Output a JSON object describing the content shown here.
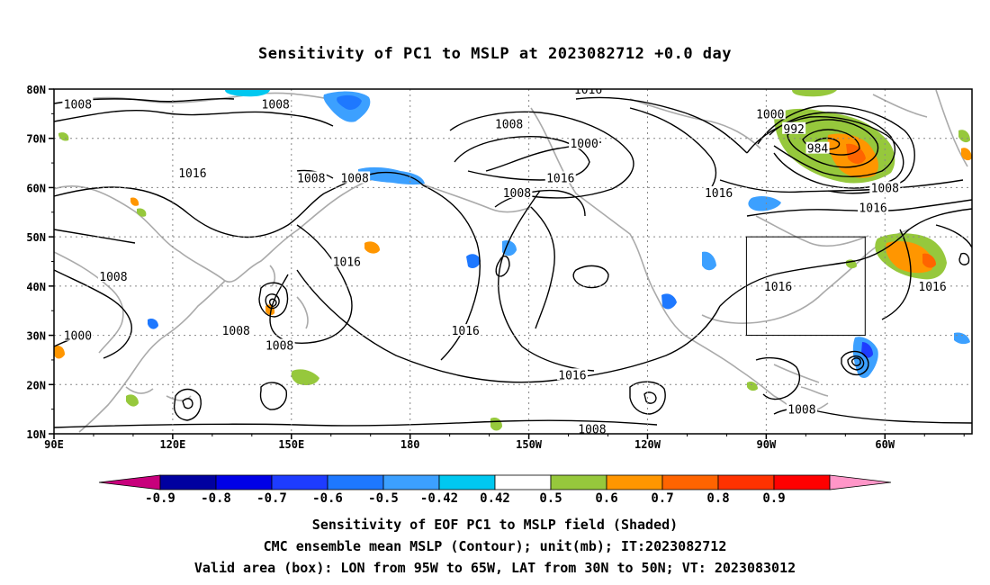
{
  "title": "Sensitivity of PC1 to MSLP at 2023082712 +0.0 day",
  "map": {
    "lat_ticks": [
      "80N",
      "70N",
      "60N",
      "50N",
      "40N",
      "30N",
      "20N",
      "10N"
    ],
    "lon_ticks": [
      "90E",
      "120E",
      "150E",
      "180",
      "150W",
      "120W",
      "90W",
      "60W"
    ],
    "lon_range_deg_east": [
      90,
      322
    ],
    "lat_range": [
      10,
      80
    ],
    "grid": "dotted",
    "valid_box": {
      "lon_west": -95,
      "lon_east": -65,
      "lat_south": 30,
      "lat_north": 50
    }
  },
  "contours": {
    "unit": "mb",
    "labels": [
      {
        "text": "1008",
        "lon": 96,
        "lat": 77
      },
      {
        "text": "1008",
        "lon": 146,
        "lat": 77
      },
      {
        "text": "1016",
        "lon": 125,
        "lat": 63
      },
      {
        "text": "1008",
        "lon": 155,
        "lat": 62
      },
      {
        "text": "1008",
        "lon": 166,
        "lat": 62
      },
      {
        "text": "1008",
        "lon": 205,
        "lat": 73
      },
      {
        "text": "1016",
        "lon": 225,
        "lat": 80
      },
      {
        "text": "1000",
        "lon": 224,
        "lat": 69
      },
      {
        "text": "1016",
        "lon": 218,
        "lat": 62
      },
      {
        "text": "1008",
        "lon": 207,
        "lat": 59
      },
      {
        "text": "1000",
        "lon": 271,
        "lat": 75
      },
      {
        "text": "992",
        "lon": 277,
        "lat": 72
      },
      {
        "text": "984",
        "lon": 283,
        "lat": 68
      },
      {
        "text": "1016",
        "lon": 258,
        "lat": 59
      },
      {
        "text": "1008",
        "lon": 300,
        "lat": 60
      },
      {
        "text": "1016",
        "lon": 297,
        "lat": 56
      },
      {
        "text": "1008",
        "lon": 105,
        "lat": 42
      },
      {
        "text": "1016",
        "lon": 164,
        "lat": 45
      },
      {
        "text": "1000",
        "lon": 96,
        "lat": 30
      },
      {
        "text": "1008",
        "lon": 136,
        "lat": 31
      },
      {
        "text": "1008",
        "lon": 147,
        "lat": 28
      },
      {
        "text": "1016",
        "lon": 194,
        "lat": 31
      },
      {
        "text": "1016",
        "lon": 221,
        "lat": 22
      },
      {
        "text": "1008",
        "lon": 226,
        "lat": 11
      },
      {
        "text": "1016",
        "lon": 273,
        "lat": 40
      },
      {
        "text": "1016",
        "lon": 312,
        "lat": 40
      },
      {
        "text": "1008",
        "lon": 279,
        "lat": 15
      }
    ]
  },
  "colorbar": {
    "labels": [
      "-0.9",
      "-0.8",
      "-0.7",
      "-0.6",
      "-0.5",
      "-0.42",
      "0.42",
      "0.5",
      "0.6",
      "0.7",
      "0.8",
      "0.9"
    ],
    "colors": [
      "#c8007c",
      "#0000a0",
      "#0000e6",
      "#1e3cff",
      "#1e78ff",
      "#3ca0ff",
      "#00c8f0",
      "#ffffff",
      "#96c83c",
      "#ff9600",
      "#ff6400",
      "#ff3200",
      "#ff0000",
      "#ff96c8"
    ]
  },
  "captions": [
    "Sensitivity of EOF PC1 to MSLP field (Shaded)",
    "CMC ensemble mean MSLP (Contour); unit(mb); IT:2023082712",
    "Valid area (box): LON from 95W to 65W, LAT from 30N to 50N; VT: 2023083012"
  ]
}
